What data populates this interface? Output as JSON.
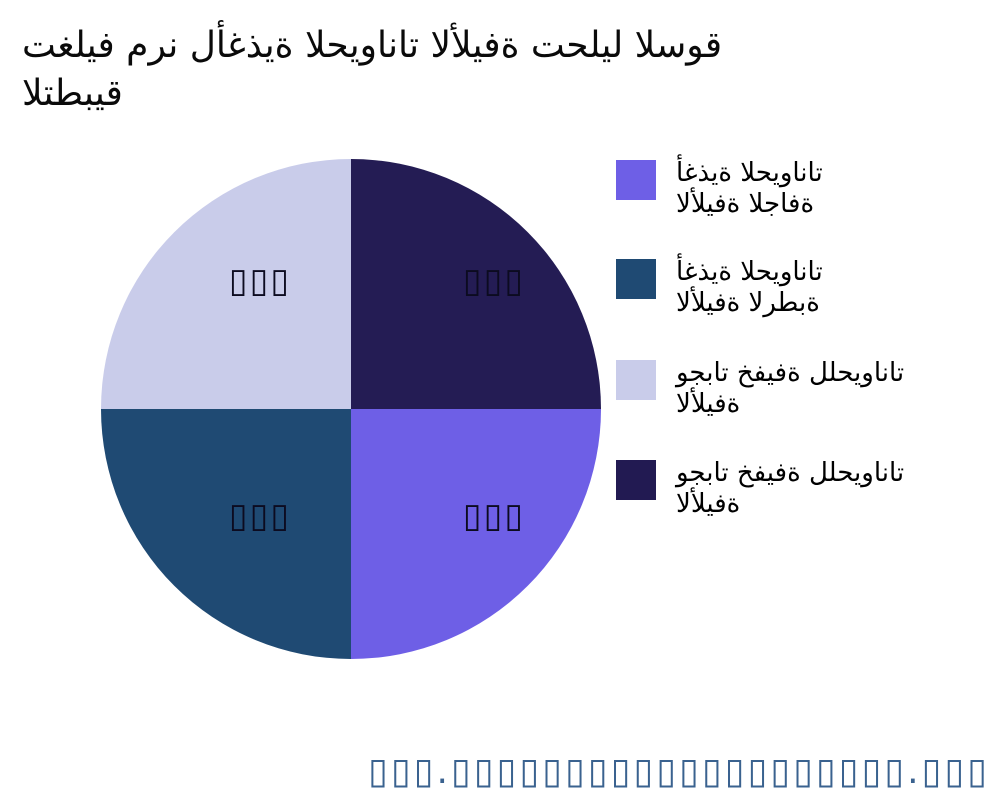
{
  "title": {
    "line1": "تغليف مرن لأغذية الحيوانات الأليفة تحليل السوق",
    "line2": "التطبيق"
  },
  "chart_data": {
    "type": "pie",
    "title": "تغليف مرن لأغذية الحيوانات الأليفة تحليل السوق التطبيق",
    "labels": [
      "أغذية الحيوانات الأليفة الجافة",
      "أغذية الحيوانات الأليفة الرطبة",
      "وجبات خفيفة للحيوانات الأليفة",
      "وجبات خفيفة للحيوانات الأليفة"
    ],
    "values": [
      25,
      25,
      25,
      25
    ],
    "colors": [
      "#6E5FE6",
      "#1F4A73",
      "#C9CCEA",
      "#241C54"
    ],
    "slice_value_labels": [
      "▯▯▯",
      "▯▯▯",
      "▯▯▯",
      "▯▯▯"
    ],
    "start_angle": 90,
    "direction": "clockwise",
    "legend_position": "right",
    "grid": false
  },
  "pie": {
    "labels": {
      "top_left": "▯▯▯",
      "top_right": "▯▯▯",
      "bottom_left": "▯▯▯",
      "bottom_right": "▯▯▯"
    }
  },
  "legend": {
    "items": [
      {
        "line1": "أغذية الحيوانات",
        "line2": "الأليفة الجافة",
        "color": "#6E5FE6"
      },
      {
        "line1": "أغذية الحيوانات",
        "line2": "الأليفة الرطبة",
        "color": "#1F4A73"
      },
      {
        "line1": "وجبات خفيفة للحيوانات",
        "line2": "الأليفة",
        "color": "#C9CCEA"
      },
      {
        "line1": "وجبات خفيفة للحيوانات",
        "line2": "الأليفة",
        "color": "#221A52"
      }
    ]
  },
  "footer": {
    "text": "▯▯▯.▯▯▯▯▯▯▯▯▯▯▯▯▯▯▯▯▯▯▯▯.▯▯▯",
    "color": "#3A628F"
  }
}
